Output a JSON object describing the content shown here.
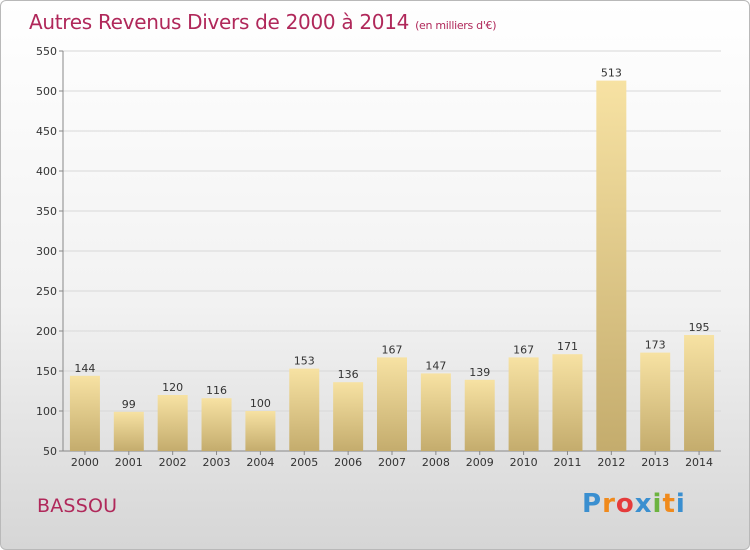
{
  "title": "Autres Revenus Divers de 2000 à 2014",
  "subtitle": "(en milliers d'€)",
  "place": "BASSOU",
  "logo": {
    "letters": [
      "P",
      "r",
      "o",
      "x",
      "i",
      "t",
      "i"
    ],
    "colors": [
      "#3a8fd0",
      "#f08a1c",
      "#e53b3b",
      "#3a8fd0",
      "#6cb33f",
      "#f08a1c",
      "#3a8fd0"
    ]
  },
  "colors": {
    "title": "#b0285a",
    "bar_light": "#f7e2a3",
    "bar_dark": "#c4ac6d",
    "grid": "#d8d8d8"
  },
  "chart_data": {
    "type": "bar",
    "categories": [
      "2000",
      "2001",
      "2002",
      "2003",
      "2004",
      "2005",
      "2006",
      "2007",
      "2008",
      "2009",
      "2010",
      "2011",
      "2012",
      "2013",
      "2014"
    ],
    "values": [
      144,
      99,
      120,
      116,
      100,
      153,
      136,
      167,
      147,
      139,
      167,
      171,
      513,
      173,
      195
    ],
    "yticks": [
      50,
      100,
      150,
      200,
      250,
      300,
      350,
      400,
      450,
      500,
      550
    ],
    "ylim": [
      50,
      550
    ],
    "grid": true
  }
}
